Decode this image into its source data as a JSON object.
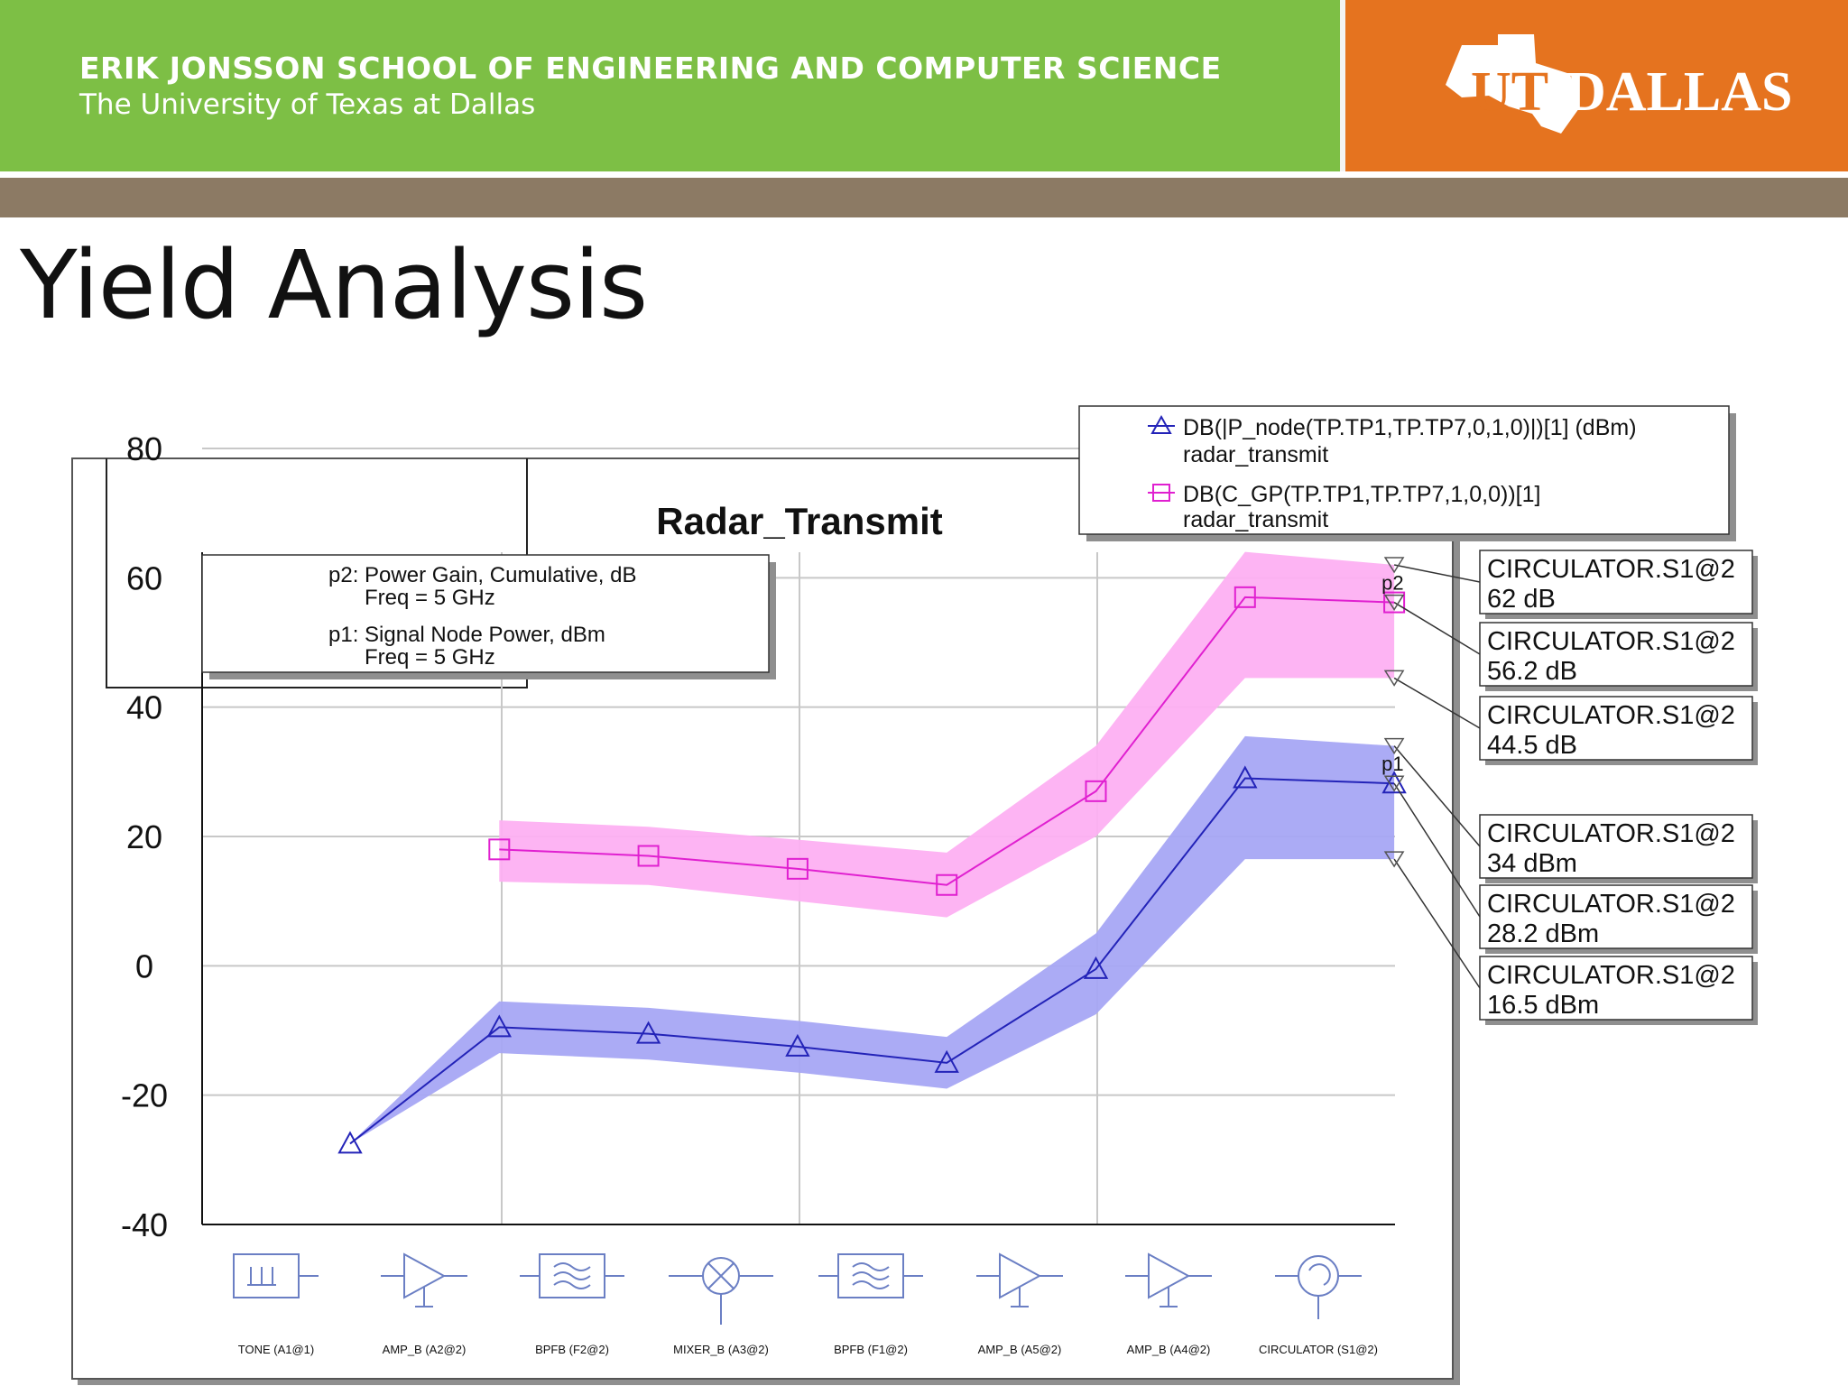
{
  "header": {
    "school_line1": "ERIK JONSSON SCHOOL OF ENGINEERING AND COMPUTER SCIENCE",
    "school_line2": "The University of Texas at Dallas",
    "logo_text": "UT DALLAS",
    "green": "#7dbf45",
    "orange": "#e5731f",
    "bar": "#8c7a64"
  },
  "slide": {
    "title": "Yield Analysis"
  },
  "chart_data": {
    "type": "line",
    "title": "Radar_Transmit",
    "xlabel": "",
    "ylabel": "",
    "ylim": [
      -40,
      80
    ],
    "yticks": [
      80,
      60,
      40,
      20,
      0,
      -20,
      -40
    ],
    "grid": true,
    "categories": [
      "TONE (A1@1)",
      "AMP_B (A2@2)",
      "BPFB (F2@2)",
      "MIXER_B (A3@2)",
      "BPFB (F1@2)",
      "AMP_B (A5@2)",
      "AMP_B (A4@2)",
      "CIRCULATOR (S1@2)"
    ],
    "category_icons": [
      "tone-source-icon",
      "amplifier-icon",
      "bandpass-filter-icon",
      "mixer-icon",
      "bandpass-filter-icon",
      "amplifier-icon",
      "amplifier-icon",
      "circulator-icon"
    ],
    "x_positions": [
      0.5,
      1.5,
      2.5,
      3.5,
      4.5,
      5.5,
      6.5,
      7.5
    ],
    "x_range": [
      0,
      8
    ],
    "series": [
      {
        "name": "DB(|P_node(TP.TP1,TP.TP7,0,1,0)|)[1] (dBm)",
        "name_line2": "radar_transmit",
        "marker": "triangle",
        "color": "#2323b8",
        "band_color": "#a7a7f4",
        "x": [
          1,
          2,
          3,
          4,
          5,
          6,
          7,
          8
        ],
        "values": [
          -27.5,
          -9.5,
          -10.5,
          -12.5,
          -15,
          -0.5,
          29,
          28.2
        ],
        "band_upper": [
          -27.5,
          -5.5,
          -6.5,
          -8.5,
          -11,
          5,
          35.5,
          34
        ],
        "band_lower": [
          -27.5,
          -13.5,
          -14.5,
          -16.5,
          -19,
          -7.5,
          16.5,
          16.5
        ]
      },
      {
        "name": "DB(C_GP(TP.TP1,TP.TP7,1,0,0))[1]",
        "name_line2": "radar_transmit",
        "marker": "square",
        "color": "#e020d0",
        "band_color": "#fdb0f2",
        "x": [
          2,
          3,
          4,
          5,
          6,
          7,
          8
        ],
        "values": [
          18,
          17,
          15,
          12.5,
          27,
          57,
          56.2
        ],
        "band_upper": [
          22.5,
          21.5,
          19.5,
          17.5,
          34,
          64,
          62
        ],
        "band_lower": [
          13,
          12.5,
          10,
          7.5,
          20,
          44.5,
          44.5
        ]
      }
    ],
    "info_box": {
      "p2_line1": "p2: Power Gain, Cumulative, dB",
      "p2_line2": "Freq = 5 GHz",
      "p1_line1": "p1: Signal Node Power, dBm",
      "p1_line2": "Freq = 5 GHz"
    },
    "markers": [
      {
        "label": "p2",
        "x": 8,
        "y": 56.2
      },
      {
        "label": "p1",
        "x": 8,
        "y": 28.2
      }
    ],
    "annotations": [
      {
        "line1": "CIRCULATOR.S1@2",
        "line2": "62 dB",
        "x": 8,
        "y": 62
      },
      {
        "line1": "CIRCULATOR.S1@2",
        "line2": "56.2 dB",
        "x": 8,
        "y": 56.2
      },
      {
        "line1": "CIRCULATOR.S1@2",
        "line2": "44.5 dB",
        "x": 8,
        "y": 44.5
      },
      {
        "line1": "CIRCULATOR.S1@2",
        "line2": "34 dBm",
        "x": 8,
        "y": 34
      },
      {
        "line1": "CIRCULATOR.S1@2",
        "line2": "28.2 dBm",
        "x": 8,
        "y": 28.2
      },
      {
        "line1": "CIRCULATOR.S1@2",
        "line2": "16.5 dBm",
        "x": 8,
        "y": 16.5
      }
    ]
  }
}
